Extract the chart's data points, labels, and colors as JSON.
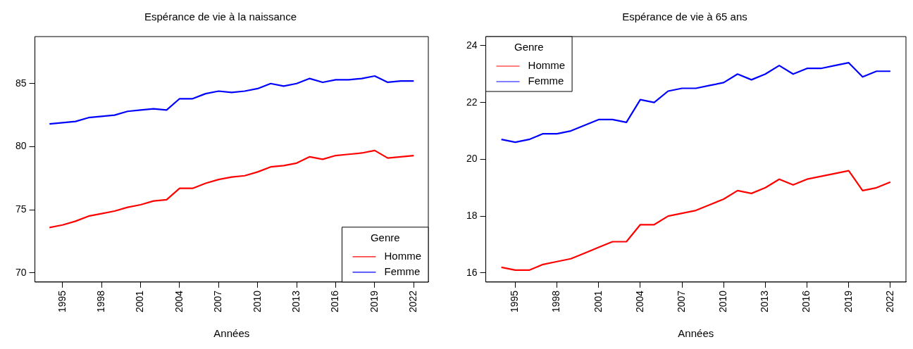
{
  "chart_data": [
    {
      "type": "line",
      "title": "Espérance de vie à la naissance",
      "xlabel": "Années",
      "legend_title": "Genre",
      "legend": "bottom right",
      "grid": false,
      "x": [
        1994,
        1995,
        1996,
        1997,
        1998,
        1999,
        2000,
        2001,
        2002,
        2003,
        2004,
        2005,
        2006,
        2007,
        2008,
        2009,
        2010,
        2011,
        2012,
        2013,
        2014,
        2015,
        2016,
        2017,
        2018,
        2019,
        2020,
        2021,
        2022
      ],
      "xlim": [
        1992.88,
        2023.12
      ],
      "xticks": [
        1995,
        1998,
        2001,
        2004,
        2007,
        2010,
        2013,
        2016,
        2019,
        2022
      ],
      "ylim": [
        69.28,
        88.72
      ],
      "yticks": [
        70,
        75,
        80,
        85
      ],
      "series": [
        {
          "name": "Homme",
          "color": "#ff0000",
          "values": [
            73.6,
            73.8,
            74.1,
            74.5,
            74.7,
            74.9,
            75.2,
            75.4,
            75.7,
            75.8,
            76.7,
            76.7,
            77.1,
            77.4,
            77.6,
            77.7,
            78.0,
            78.4,
            78.5,
            78.7,
            79.2,
            79.0,
            79.3,
            79.4,
            79.5,
            79.7,
            79.1,
            79.2,
            79.3
          ]
        },
        {
          "name": "Femme",
          "color": "#0000ff",
          "values": [
            81.8,
            81.9,
            82.0,
            82.3,
            82.4,
            82.5,
            82.8,
            82.9,
            83.0,
            82.9,
            83.8,
            83.8,
            84.2,
            84.4,
            84.3,
            84.4,
            84.6,
            85.0,
            84.8,
            85.0,
            85.4,
            85.1,
            85.3,
            85.3,
            85.4,
            85.6,
            85.1,
            85.2,
            85.2
          ]
        }
      ]
    },
    {
      "type": "line",
      "title": "Espérance de vie à 65 ans",
      "xlabel": "Années",
      "legend_title": "Genre",
      "legend": "top left",
      "grid": false,
      "x": [
        1994,
        1995,
        1996,
        1997,
        1998,
        1999,
        2000,
        2001,
        2002,
        2003,
        2004,
        2005,
        2006,
        2007,
        2008,
        2009,
        2010,
        2011,
        2012,
        2013,
        2014,
        2015,
        2016,
        2017,
        2018,
        2019,
        2020,
        2021,
        2022
      ],
      "xlim": [
        1992.88,
        2023.12
      ],
      "xticks": [
        1995,
        1998,
        2001,
        2004,
        2007,
        2010,
        2013,
        2016,
        2019,
        2022
      ],
      "ylim": [
        15.68,
        24.32
      ],
      "yticks": [
        16,
        18,
        20,
        22,
        24
      ],
      "series": [
        {
          "name": "Homme",
          "color": "#ff0000",
          "values": [
            16.2,
            16.1,
            16.1,
            16.3,
            16.4,
            16.5,
            16.7,
            16.9,
            17.1,
            17.1,
            17.7,
            17.7,
            18.0,
            18.1,
            18.2,
            18.4,
            18.6,
            18.9,
            18.8,
            19.0,
            19.3,
            19.1,
            19.3,
            19.4,
            19.5,
            19.6,
            18.9,
            19.0,
            19.2
          ]
        },
        {
          "name": "Femme",
          "color": "#0000ff",
          "values": [
            20.7,
            20.6,
            20.7,
            20.9,
            20.9,
            21.0,
            21.2,
            21.4,
            21.4,
            21.3,
            22.1,
            22.0,
            22.4,
            22.5,
            22.5,
            22.6,
            22.7,
            23.0,
            22.8,
            23.0,
            23.3,
            23.0,
            23.2,
            23.2,
            23.3,
            23.4,
            22.9,
            23.1,
            23.1
          ]
        }
      ]
    }
  ]
}
